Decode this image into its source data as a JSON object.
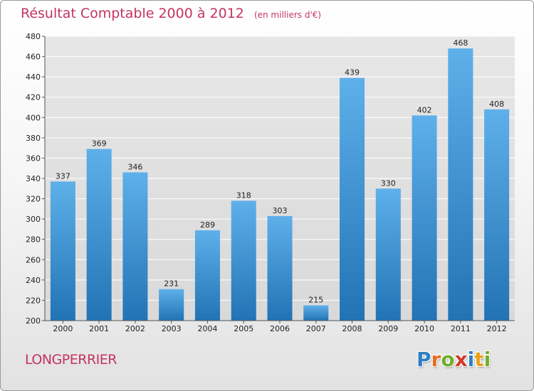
{
  "chart_data": {
    "type": "bar",
    "title": "Résultat Comptable 2000 à 2012",
    "unit_label": "(en milliers d'€)",
    "categories": [
      "2000",
      "2001",
      "2002",
      "2003",
      "2004",
      "2005",
      "2006",
      "2007",
      "2008",
      "2009",
      "2010",
      "2011",
      "2012"
    ],
    "values": [
      337,
      369,
      346,
      231,
      289,
      318,
      303,
      215,
      439,
      330,
      402,
      468,
      408
    ],
    "ylim": [
      200,
      480
    ],
    "yticks": [
      200,
      220,
      240,
      260,
      280,
      300,
      320,
      340,
      360,
      380,
      400,
      420,
      440,
      460,
      480
    ],
    "grid": true,
    "xlabel": "",
    "ylabel": ""
  },
  "commune": "LONGPERRIER",
  "logo": {
    "letters": [
      "P",
      "r",
      "o",
      "x",
      "i",
      "t",
      "i"
    ],
    "colors": [
      "#2f7fc1",
      "#e46d1f",
      "#6fae2a",
      "#d23a2a",
      "#2f7fc1",
      "#e8a21a",
      "#6fae2a"
    ]
  },
  "colors": {
    "bar_top": "#5eb0ea",
    "bar_bottom": "#2273b4",
    "title": "#c4345f",
    "grid": "#ffffff"
  }
}
